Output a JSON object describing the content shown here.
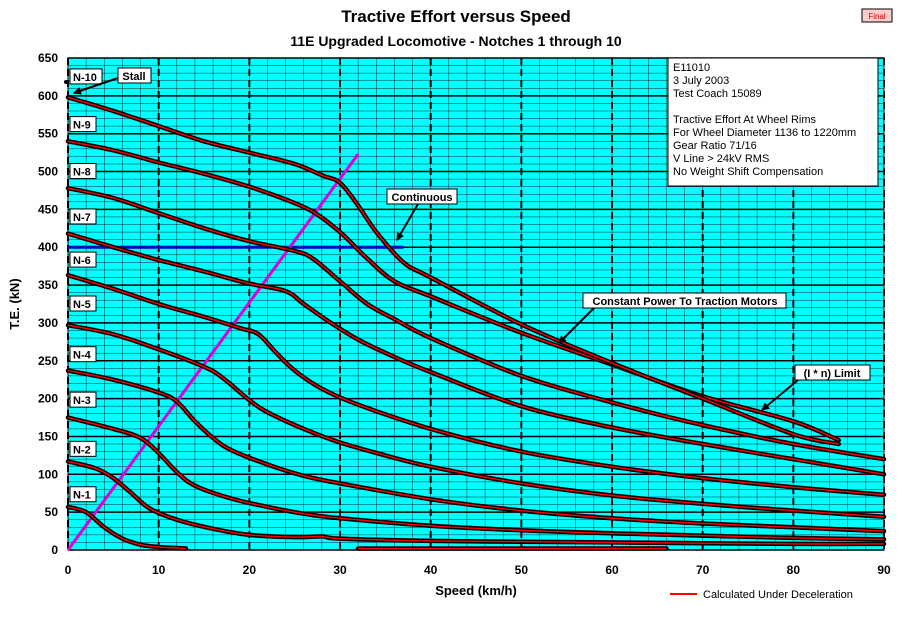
{
  "chart_data": {
    "type": "line",
    "title": "Tractive Effort versus Speed",
    "subtitle": "11E Upgraded Locomotive - Notches 1 through 10",
    "badge": "Final",
    "xlabel": "Speed (km/h)",
    "ylabel": "T.E. (kN)",
    "xlim": [
      0,
      90
    ],
    "ylim": [
      0,
      650
    ],
    "x_ticks": [
      0,
      10,
      20,
      30,
      40,
      50,
      60,
      70,
      80,
      90
    ],
    "y_ticks": [
      0,
      50,
      100,
      150,
      200,
      250,
      300,
      350,
      400,
      450,
      500,
      550,
      600,
      650
    ],
    "grid": true,
    "plot_background": "#00ffff",
    "info_box": [
      "E11010",
      "3 July 2003",
      "Test Coach 15089",
      "",
      "Tractive Effort At Wheel Rims",
      "For Wheel Diameter 1136 to 1220mm",
      "Gear Ratio 71/16",
      "V Line > 24kV RMS",
      "No Weight Shift Compensation"
    ],
    "legend": {
      "label": "Calculated Under Deceleration",
      "color": "#ff0000",
      "position": "bottom-right"
    },
    "series": [
      {
        "name": "N-1",
        "label_y": 73,
        "points": [
          [
            0,
            57
          ],
          [
            2,
            50
          ],
          [
            4,
            30
          ],
          [
            6,
            15
          ],
          [
            8,
            7
          ],
          [
            10,
            4
          ],
          [
            13,
            2
          ]
        ]
      },
      {
        "name": "N-1 high speed",
        "label_y": null,
        "points": [
          [
            32,
            2
          ],
          [
            50,
            2
          ],
          [
            66,
            2
          ]
        ]
      },
      {
        "name": "N-2",
        "label_y": 133,
        "points": [
          [
            0,
            117
          ],
          [
            3,
            108
          ],
          [
            5,
            95
          ],
          [
            7,
            75
          ],
          [
            9,
            55
          ],
          [
            12,
            40
          ],
          [
            16,
            28
          ],
          [
            20,
            20
          ],
          [
            25,
            17
          ],
          [
            28,
            18
          ],
          [
            30,
            15
          ],
          [
            40,
            12
          ],
          [
            50,
            11
          ],
          [
            60,
            10
          ],
          [
            70,
            9
          ],
          [
            80,
            8
          ],
          [
            90,
            8
          ]
        ]
      },
      {
        "name": "N-3",
        "label_y": 198,
        "points": [
          [
            0,
            175
          ],
          [
            5,
            160
          ],
          [
            8,
            148
          ],
          [
            10,
            128
          ],
          [
            12,
            103
          ],
          [
            14,
            85
          ],
          [
            18,
            68
          ],
          [
            22,
            57
          ],
          [
            26,
            48
          ],
          [
            30,
            42
          ],
          [
            40,
            32
          ],
          [
            50,
            26
          ],
          [
            60,
            22
          ],
          [
            70,
            19
          ],
          [
            80,
            16
          ],
          [
            90,
            14
          ]
        ]
      },
      {
        "name": "N-4",
        "label_y": 258,
        "points": [
          [
            0,
            237
          ],
          [
            5,
            225
          ],
          [
            10,
            208
          ],
          [
            12,
            196
          ],
          [
            14,
            170
          ],
          [
            16,
            148
          ],
          [
            18,
            132
          ],
          [
            22,
            113
          ],
          [
            26,
            98
          ],
          [
            30,
            88
          ],
          [
            40,
            67
          ],
          [
            50,
            52
          ],
          [
            60,
            42
          ],
          [
            70,
            35
          ],
          [
            80,
            30
          ],
          [
            90,
            25
          ]
        ]
      },
      {
        "name": "N-5",
        "label_y": 325,
        "points": [
          [
            0,
            297
          ],
          [
            5,
            285
          ],
          [
            10,
            265
          ],
          [
            15,
            242
          ],
          [
            17,
            228
          ],
          [
            20,
            198
          ],
          [
            22,
            182
          ],
          [
            26,
            160
          ],
          [
            30,
            142
          ],
          [
            35,
            125
          ],
          [
            40,
            110
          ],
          [
            50,
            88
          ],
          [
            60,
            72
          ],
          [
            70,
            61
          ],
          [
            80,
            52
          ],
          [
            90,
            44
          ]
        ]
      },
      {
        "name": "N-6",
        "label_y": 383,
        "points": [
          [
            0,
            363
          ],
          [
            5,
            345
          ],
          [
            10,
            325
          ],
          [
            15,
            308
          ],
          [
            19,
            293
          ],
          [
            21,
            285
          ],
          [
            23,
            260
          ],
          [
            25,
            237
          ],
          [
            28,
            213
          ],
          [
            32,
            192
          ],
          [
            40,
            160
          ],
          [
            50,
            130
          ],
          [
            60,
            110
          ],
          [
            70,
            95
          ],
          [
            80,
            83
          ],
          [
            90,
            73
          ]
        ]
      },
      {
        "name": "N-7",
        "label_y": 440,
        "points": [
          [
            0,
            418
          ],
          [
            5,
            400
          ],
          [
            10,
            383
          ],
          [
            15,
            368
          ],
          [
            20,
            352
          ],
          [
            24,
            342
          ],
          [
            26,
            325
          ],
          [
            29,
            300
          ],
          [
            32,
            278
          ],
          [
            36,
            255
          ],
          [
            40,
            235
          ],
          [
            50,
            190
          ],
          [
            60,
            162
          ],
          [
            70,
            140
          ],
          [
            80,
            120
          ],
          [
            90,
            100
          ]
        ]
      },
      {
        "name": "N-8",
        "label_y": 500,
        "points": [
          [
            0,
            478
          ],
          [
            5,
            465
          ],
          [
            10,
            445
          ],
          [
            15,
            425
          ],
          [
            20,
            408
          ],
          [
            25,
            395
          ],
          [
            27,
            385
          ],
          [
            30,
            355
          ],
          [
            33,
            325
          ],
          [
            36,
            305
          ],
          [
            40,
            280
          ],
          [
            50,
            230
          ],
          [
            60,
            195
          ],
          [
            70,
            165
          ],
          [
            80,
            140
          ],
          [
            90,
            120
          ]
        ]
      },
      {
        "name": "N-9",
        "label_y": 562,
        "points": [
          [
            0,
            540
          ],
          [
            5,
            528
          ],
          [
            10,
            512
          ],
          [
            15,
            497
          ],
          [
            20,
            480
          ],
          [
            24,
            463
          ],
          [
            27,
            447
          ],
          [
            30,
            420
          ],
          [
            33,
            385
          ],
          [
            36,
            355
          ],
          [
            40,
            335
          ],
          [
            50,
            287
          ],
          [
            60,
            245
          ],
          [
            70,
            203
          ],
          [
            80,
            170
          ],
          [
            85,
            145
          ]
        ]
      },
      {
        "name": "N-10",
        "label_y": 625,
        "points": [
          [
            0,
            598
          ],
          [
            5,
            580
          ],
          [
            10,
            560
          ],
          [
            15,
            540
          ],
          [
            20,
            525
          ],
          [
            25,
            510
          ],
          [
            28,
            495
          ],
          [
            30,
            485
          ],
          [
            32,
            455
          ],
          [
            34,
            420
          ],
          [
            37,
            380
          ],
          [
            40,
            360
          ],
          [
            50,
            298
          ],
          [
            60,
            247
          ],
          [
            70,
            200
          ],
          [
            80,
            153
          ],
          [
            85,
            140
          ]
        ]
      }
    ],
    "reference_lines": [
      {
        "name": "Continuous",
        "color": "#0000cc",
        "points": [
          [
            0,
            400
          ],
          [
            37,
            400
          ]
        ]
      },
      {
        "name": "Max adhesion",
        "color": "#dd00dd",
        "points": [
          [
            0,
            0
          ],
          [
            32,
            523
          ]
        ]
      }
    ],
    "annotations": [
      {
        "text": "Stall",
        "x": 0,
        "y": 620
      },
      {
        "text": "Continuous",
        "x": 36.5,
        "y": 405
      },
      {
        "text": "Constant Power To Traction Motors",
        "x": 54,
        "y": 270
      },
      {
        "text": "(I * n) Limit",
        "x": 76,
        "y": 178
      }
    ]
  }
}
